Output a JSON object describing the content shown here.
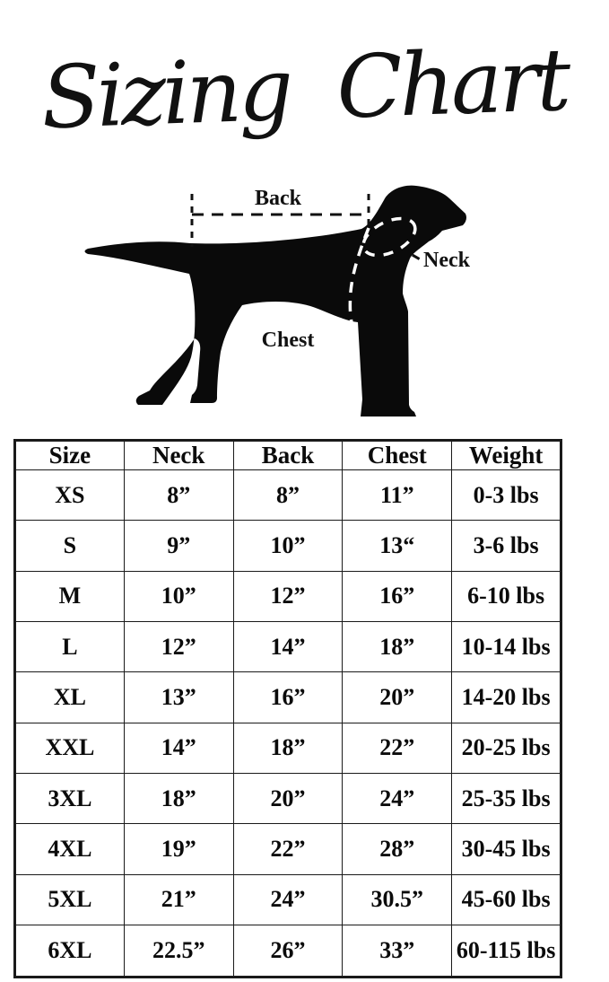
{
  "title": "Sizing Chart",
  "diagram": {
    "back_label": "Back",
    "neck_label": "Neck",
    "chest_label": "Chest"
  },
  "table": {
    "headers": [
      "Size",
      "Neck",
      "Back",
      "Chest",
      "Weight"
    ],
    "rows": [
      [
        "XS",
        "8”",
        "8”",
        "11”",
        "0-3 lbs"
      ],
      [
        "S",
        "9”",
        "10”",
        "13“",
        "3-6 lbs"
      ],
      [
        "M",
        "10”",
        "12”",
        "16”",
        "6-10 lbs"
      ],
      [
        "L",
        "12”",
        "14”",
        "18”",
        "10-14 lbs"
      ],
      [
        "XL",
        "13”",
        "16”",
        "20”",
        "14-20 lbs"
      ],
      [
        "XXL",
        "14”",
        "18”",
        "22”",
        "20-25 lbs"
      ],
      [
        "3XL",
        "18”",
        "20”",
        "24”",
        "25-35 lbs"
      ],
      [
        "4XL",
        "19”",
        "22”",
        "28”",
        "30-45 lbs"
      ],
      [
        "5XL",
        "21”",
        "24”",
        "30.5”",
        "45-60 lbs"
      ],
      [
        "6XL",
        "22.5”",
        "26”",
        "33”",
        "60-115 lbs"
      ]
    ]
  },
  "colors": {
    "ink": "#111111",
    "background": "#ffffff"
  }
}
